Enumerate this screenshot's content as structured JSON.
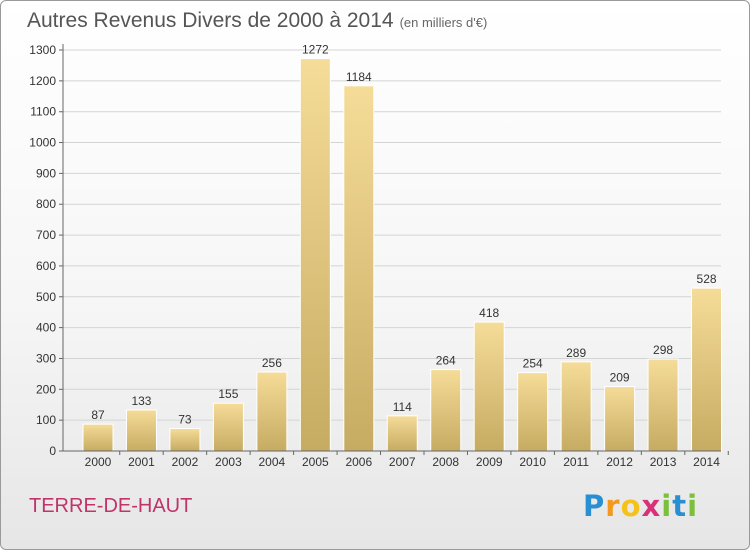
{
  "header": {
    "title": "Autres Revenus Divers de 2000 à 2014",
    "unit": "(en milliers d'€)"
  },
  "commune": "TERRE-DE-HAUT",
  "logo": {
    "letters": [
      "P",
      "r",
      "o",
      "x",
      "i",
      "t",
      "i"
    ],
    "colors": [
      "#2a8fd1",
      "#f39a1e",
      "#f5c21b",
      "#d8317a",
      "#7bbf3a",
      "#2a8fd1",
      "#7bbf3a"
    ]
  },
  "colors": {
    "bar_light": "#f5dc98",
    "bar_dark": "#c6ab62",
    "grid": "#d4d4d4",
    "axis": "#666666",
    "text": "#333333"
  },
  "chart_data": {
    "type": "bar",
    "categories": [
      "2000",
      "2001",
      "2002",
      "2003",
      "2004",
      "2005",
      "2006",
      "2007",
      "2008",
      "2009",
      "2010",
      "2011",
      "2012",
      "2013",
      "2014"
    ],
    "values": [
      87,
      133,
      73,
      155,
      256,
      1272,
      1184,
      114,
      264,
      418,
      254,
      289,
      209,
      298,
      528
    ],
    "title": "Autres Revenus Divers de 2000 à 2014",
    "ylim": [
      0,
      1300
    ],
    "yticks": [
      0,
      100,
      200,
      300,
      400,
      500,
      600,
      700,
      800,
      900,
      1000,
      1100,
      1200,
      1300
    ],
    "grid": true
  }
}
